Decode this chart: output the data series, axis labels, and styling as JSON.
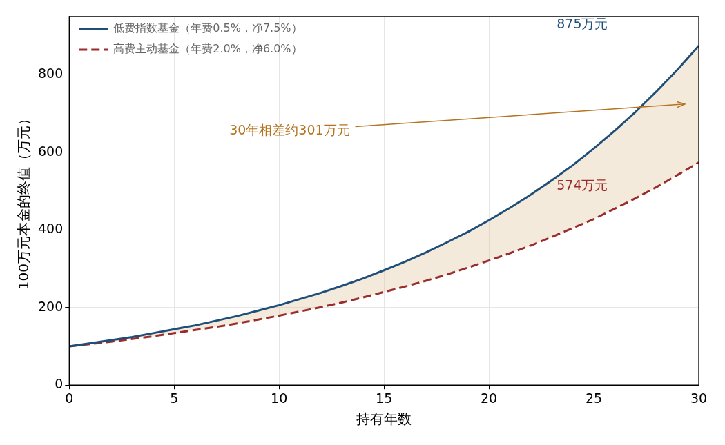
{
  "chart_data": {
    "type": "line",
    "xlabel": "持有年数",
    "ylabel": "100万元本金的终值（万元）",
    "x": [
      0,
      1,
      2,
      3,
      4,
      5,
      6,
      7,
      8,
      9,
      10,
      11,
      12,
      13,
      14,
      15,
      16,
      17,
      18,
      19,
      20,
      21,
      22,
      23,
      24,
      25,
      26,
      27,
      28,
      29,
      30
    ],
    "series": [
      {
        "name": "低费指数基金（年费0.5%，净7.5%）",
        "color": "#1f4e79",
        "line_style": "solid",
        "values": [
          100,
          108,
          116,
          124,
          134,
          144,
          154,
          166,
          178,
          192,
          206,
          222,
          238,
          256,
          275,
          296,
          318,
          342,
          368,
          395,
          425,
          457,
          491,
          528,
          567,
          610,
          656,
          705,
          758,
          814,
          875
        ],
        "lower": [
          100,
          106,
          112,
          119,
          126,
          134,
          142,
          150,
          159,
          169,
          179,
          190,
          201,
          213,
          226,
          240,
          254,
          269,
          285,
          303,
          321,
          340,
          360,
          382,
          405,
          428,
          455,
          482,
          511,
          542,
          574
        ],
        "upper": [
          100,
          108,
          116,
          124,
          134,
          144,
          154,
          166,
          178,
          192,
          206,
          222,
          238,
          256,
          275,
          296,
          318,
          342,
          368,
          395,
          425,
          457,
          491,
          528,
          567,
          610,
          656,
          705,
          758,
          814,
          875
        ]
      },
      {
        "name": "高费主动基金（年费2.0%，净6.0%）",
        "color": "#9b2c2c",
        "line_style": "dashed",
        "values": [
          100,
          106,
          112,
          119,
          126,
          134,
          142,
          150,
          159,
          169,
          179,
          190,
          201,
          213,
          226,
          240,
          254,
          269,
          285,
          303,
          321,
          340,
          360,
          382,
          405,
          428,
          455,
          482,
          511,
          542,
          574
        ]
      }
    ],
    "xlim": [
      0,
      30
    ],
    "xticks": [
      0,
      5,
      10,
      15,
      20,
      25,
      30
    ],
    "ylim": [
      0,
      950
    ],
    "yticks": [
      0,
      200,
      400,
      600,
      800
    ],
    "grid": true,
    "legend": "top left",
    "marker": "none",
    "annotations": [
      "875万元",
      "574万元",
      "30年相差约301万元"
    ]
  }
}
